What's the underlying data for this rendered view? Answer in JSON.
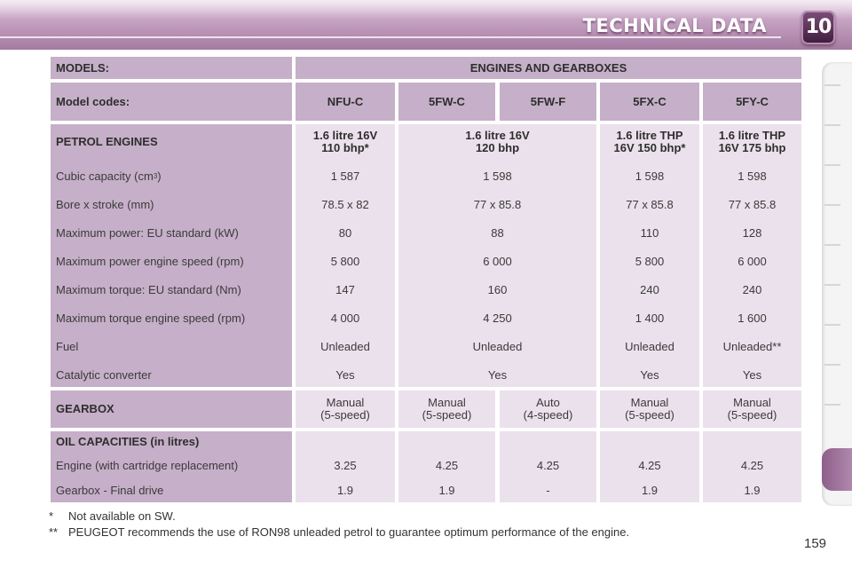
{
  "header": {
    "title": "TECHNICAL DATA",
    "chapter": "10"
  },
  "table": {
    "models_label": "MODELS:",
    "engines_label": "ENGINES AND GEARBOXES",
    "model_codes_label": "Model codes:",
    "model_codes": [
      "NFU-C",
      "5FW-C",
      "5FW-F",
      "5FX-C",
      "5FY-C"
    ],
    "petrol": {
      "label": "PETROL ENGINES",
      "engines": [
        "1.6 litre 16V\n110 bhp*",
        "1.6 litre 16V\n120 bhp",
        "1.6 litre THP\n16V 150 bhp*",
        "1.6 litre THP\n16V 175 bhp"
      ],
      "rows": [
        {
          "label": "Cubic capacity (cm",
          "label_sup": "3",
          "label_end": ")",
          "values": [
            "1 587",
            "1 598",
            "1 598",
            "1 598"
          ]
        },
        {
          "label": "Bore x stroke (mm)",
          "values": [
            "78.5 x 82",
            "77 x 85.8",
            "77 x 85.8",
            "77 x 85.8"
          ]
        },
        {
          "label": "Maximum power: EU standard (kW)",
          "values": [
            "80",
            "88",
            "110",
            "128"
          ]
        },
        {
          "label": "Maximum power engine speed (rpm)",
          "values": [
            "5 800",
            "6 000",
            "5 800",
            "6 000"
          ]
        },
        {
          "label": "Maximum torque: EU standard (Nm)",
          "values": [
            "147",
            "160",
            "240",
            "240"
          ]
        },
        {
          "label": "Maximum torque engine speed (rpm)",
          "values": [
            "4 000",
            "4 250",
            "1 400",
            "1 600"
          ]
        },
        {
          "label": "Fuel",
          "values": [
            "Unleaded",
            "Unleaded",
            "Unleaded",
            "Unleaded**"
          ]
        },
        {
          "label": "Catalytic converter",
          "values": [
            "Yes",
            "Yes",
            "Yes",
            "Yes"
          ]
        }
      ]
    },
    "gearbox": {
      "label": "GEARBOX",
      "values": [
        "Manual\n(5-speed)",
        "Manual\n(5-speed)",
        "Auto\n(4-speed)",
        "Manual\n(5-speed)",
        "Manual\n(5-speed)"
      ]
    },
    "oil": {
      "label": "OIL CAPACITIES (in litres)",
      "rows": [
        {
          "label": "Engine (with cartridge replacement)",
          "values": [
            "3.25",
            "4.25",
            "4.25",
            "4.25",
            "4.25"
          ]
        },
        {
          "label": "Gearbox - Final drive",
          "values": [
            "1.9",
            "1.9",
            "-",
            "1.9",
            "1.9"
          ]
        }
      ]
    }
  },
  "footnotes": [
    {
      "mark": "*",
      "text": "Not available on SW."
    },
    {
      "mark": "**",
      "text": "PEUGEOT recommends the use of RON98 unleaded petrol to guarantee optimum performance of the engine."
    }
  ],
  "page_number": "159"
}
